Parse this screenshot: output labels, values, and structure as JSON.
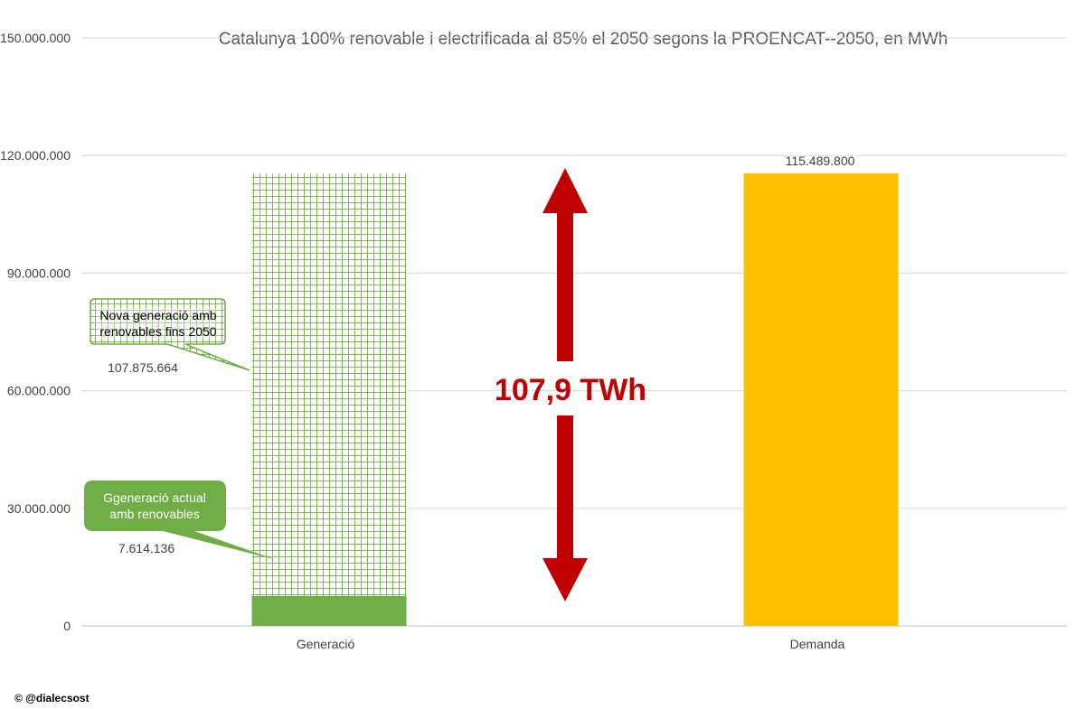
{
  "chart_data": {
    "type": "bar",
    "title": "Catalunya 100% renovable i electrificada al 85% el 2050 segons la PROENCAT--2050, en MWh",
    "categories": [
      "Generació",
      "Demanda"
    ],
    "series": [
      {
        "name": "Ggeneració actual amb renovables",
        "values": [
          7614136,
          0
        ],
        "color": "#70ad47",
        "pattern": "solid"
      },
      {
        "name": "Nova generació amb renovables fins 2050",
        "values": [
          107875664,
          0
        ],
        "color": "#70ad47",
        "pattern": "grid"
      },
      {
        "name": "",
        "values": [
          0,
          115489800
        ],
        "color": "#ffc000",
        "pattern": "solid"
      }
    ],
    "ylim": [
      0,
      150000000
    ],
    "yticks": [
      "0",
      "30.000.000",
      "60.000.000",
      "90.000.000",
      "120.000.000",
      "150.000.000"
    ],
    "ytick_values": [
      0,
      30000000,
      60000000,
      90000000,
      120000000,
      150000000
    ],
    "grid": true,
    "data_labels": {
      "generacio_actual": "7.614.136",
      "nova_generacio": "107.875.664",
      "demanda": "115.489.800"
    },
    "annotations": {
      "gap_label": "107,9 TWh",
      "gap_color": "#c00000",
      "callout_actual": [
        "Ggeneració actual",
        "amb renovables"
      ],
      "callout_nova": [
        "Nova generació amb",
        "renovables fins 2050"
      ]
    }
  },
  "credit": "© @dialecsost"
}
